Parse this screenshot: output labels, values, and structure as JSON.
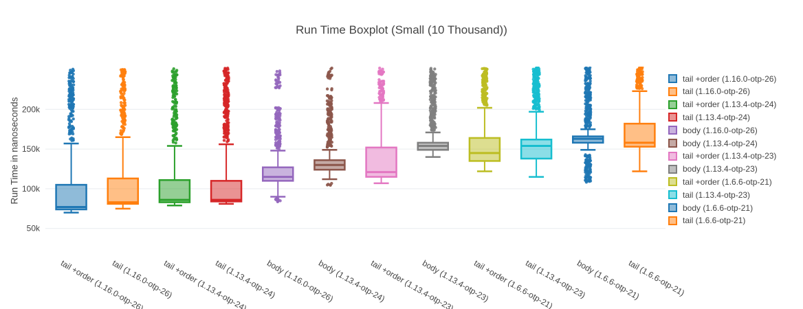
{
  "chart_data": {
    "type": "box",
    "title": "Run Time Boxplot (Small (10 Thousand))",
    "ylabel": "Run Time in nanoseconds",
    "xlabel": "",
    "grid": true,
    "legend_position": "right",
    "xaxis": {
      "tickangle": 30
    },
    "yaxis": {
      "ticks": [
        {
          "label": "50k",
          "value": 50000
        },
        {
          "label": "100k",
          "value": 100000
        },
        {
          "label": "150k",
          "value": 150000
        },
        {
          "label": "200k",
          "value": 200000
        }
      ],
      "range": [
        29000,
        253000
      ]
    },
    "series": [
      {
        "name": "tail +order (1.16.0-otp-26)",
        "color": "#1f77b4",
        "whisker_low": 70000,
        "q1": 74000,
        "median": 77000,
        "q3": 105000,
        "whisker_high": 157000,
        "outliers_above": [
          [
            160000,
            252000,
            140
          ]
        ],
        "outliers_below": [],
        "jitter": 7
      },
      {
        "name": "tail (1.16.0-otp-26)",
        "color": "#ff7f0e",
        "whisker_low": 75000,
        "q1": 81000,
        "median": 83000,
        "q3": 113000,
        "whisker_high": 165000,
        "outliers_above": [
          [
            168000,
            252000,
            130
          ]
        ],
        "outliers_below": [],
        "jitter": 7
      },
      {
        "name": "tail +order (1.13.4-otp-24)",
        "color": "#2ca02c",
        "whisker_low": 79000,
        "q1": 83000,
        "median": 86000,
        "q3": 111000,
        "whisker_high": 154000,
        "outliers_above": [
          [
            157000,
            252000,
            130
          ]
        ],
        "outliers_below": [],
        "jitter": 7
      },
      {
        "name": "tail (1.13.4-otp-24)",
        "color": "#d62728",
        "whisker_low": 81000,
        "q1": 84000,
        "median": 86000,
        "q3": 110000,
        "whisker_high": 156000,
        "outliers_above": [
          [
            159000,
            252000,
            200
          ]
        ],
        "outliers_below": [],
        "jitter": 7
      },
      {
        "name": "body (1.16.0-otp-26)",
        "color": "#9467bd",
        "whisker_low": 90000,
        "q1": 110000,
        "median": 115000,
        "q3": 127000,
        "whisker_high": 148000,
        "outliers_above": [
          [
            150000,
            203000,
            110
          ],
          [
            227000,
            249000,
            26
          ]
        ],
        "outliers_below": [
          [
            83000,
            88000,
            10
          ]
        ],
        "jitter": 7
      },
      {
        "name": "body (1.13.4-otp-24)",
        "color": "#8c564b",
        "whisker_low": 112000,
        "q1": 124000,
        "median": 130000,
        "q3": 136000,
        "whisker_high": 149000,
        "outliers_above": [
          [
            152000,
            218000,
            130
          ],
          [
            224000,
            226000,
            3
          ],
          [
            238000,
            252000,
            16
          ]
        ],
        "outliers_below": [
          [
            104000,
            107000,
            5
          ]
        ],
        "jitter": 7
      },
      {
        "name": "tail +order (1.13.4-otp-23)",
        "color": "#e377c2",
        "whisker_low": 107000,
        "q1": 115000,
        "median": 121000,
        "q3": 152000,
        "whisker_high": 208000,
        "outliers_above": [
          [
            210000,
            238000,
            55
          ],
          [
            243000,
            253000,
            14
          ]
        ],
        "outliers_below": [],
        "jitter": 7
      },
      {
        "name": "body (1.13.4-otp-23)",
        "color": "#7f7f7f",
        "whisker_low": 140000,
        "q1": 149000,
        "median": 154000,
        "q3": 158000,
        "whisker_high": 171000,
        "outliers_above": [
          [
            173000,
            252000,
            190
          ]
        ],
        "outliers_below": [],
        "jitter": 8
      },
      {
        "name": "tail +order (1.6.6-otp-21)",
        "color": "#bcbd22",
        "whisker_low": 122000,
        "q1": 135000,
        "median": 145000,
        "q3": 164000,
        "whisker_high": 202000,
        "outliers_above": [
          [
            205000,
            252000,
            120
          ]
        ],
        "outliers_below": [],
        "jitter": 7
      },
      {
        "name": "tail (1.13.4-otp-23)",
        "color": "#17becf",
        "whisker_low": 115000,
        "q1": 138000,
        "median": 154000,
        "q3": 162000,
        "whisker_high": 197000,
        "outliers_above": [
          [
            199000,
            253000,
            170
          ]
        ],
        "outliers_below": [],
        "jitter": 9
      },
      {
        "name": "body (1.6.6-otp-21)",
        "color": "#1f77b4",
        "whisker_low": 149000,
        "q1": 158000,
        "median": 163000,
        "q3": 166000,
        "whisker_high": 175000,
        "outliers_above": [
          [
            177000,
            253000,
            190
          ]
        ],
        "outliers_below": [
          [
            108000,
            143000,
            90
          ]
        ],
        "jitter": 8
      },
      {
        "name": "tail (1.6.6-otp-21)",
        "color": "#ff7f0e",
        "whisker_low": 122000,
        "q1": 153000,
        "median": 158000,
        "q3": 182000,
        "whisker_high": 223000,
        "outliers_above": [
          [
            226000,
            253000,
            90
          ]
        ],
        "outliers_below": [],
        "jitter": 9
      }
    ]
  }
}
